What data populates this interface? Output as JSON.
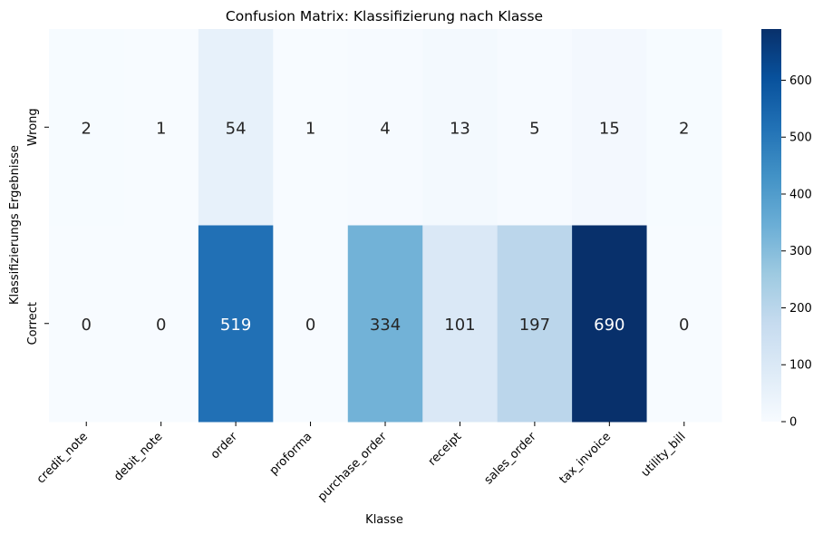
{
  "chart_data": {
    "type": "heatmap",
    "title": "Confusion Matrix: Klassifizierung nach Klasse",
    "xlabel": "Klasse",
    "ylabel": "Klassifizierungs Ergebnisse",
    "columns": [
      "credit_note",
      "debit_note",
      "order",
      "proforma",
      "purchase_order",
      "receipt",
      "sales_order",
      "tax_invoice",
      "utility_bill"
    ],
    "rows": [
      "Wrong",
      "Correct"
    ],
    "values": [
      [
        2,
        1,
        54,
        1,
        4,
        13,
        5,
        15,
        2
      ],
      [
        0,
        0,
        519,
        0,
        334,
        101,
        197,
        690,
        0
      ]
    ],
    "colormap": "Blues",
    "colorbar": {
      "min": 0,
      "max": 690,
      "ticks": [
        0,
        100,
        200,
        300,
        400,
        500,
        600
      ]
    },
    "annotations": true,
    "grid": false
  }
}
